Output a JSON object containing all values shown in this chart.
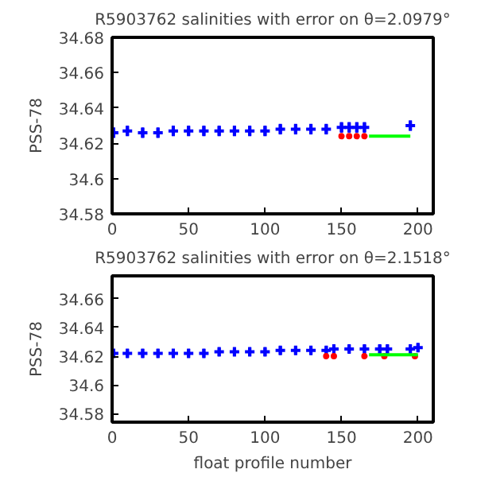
{
  "chart_data": [
    {
      "type": "scatter",
      "title": "R5903762 salinities with error on θ=2.0979°",
      "ylabel": "PSS-78",
      "xlim": [
        0,
        210
      ],
      "ylim": [
        34.58,
        34.68
      ],
      "xticks": [
        0,
        50,
        100,
        150,
        200
      ],
      "yticks": [
        34.58,
        34.6,
        34.62,
        34.64,
        34.66,
        34.68
      ],
      "grid": false,
      "series": [
        {
          "color": "#0000ff",
          "marker": "cross",
          "x": [
            1,
            10,
            20,
            30,
            40,
            50,
            60,
            70,
            80,
            90,
            100,
            110,
            120,
            130,
            140,
            150,
            155,
            160,
            165,
            195
          ],
          "values": [
            34.626,
            34.627,
            34.626,
            34.626,
            34.627,
            34.627,
            34.627,
            34.627,
            34.627,
            34.627,
            34.627,
            34.628,
            34.628,
            34.628,
            34.628,
            34.629,
            34.629,
            34.629,
            34.629,
            34.63
          ],
          "errors": [
            0.003,
            0.003,
            0.003,
            0.003,
            0.003,
            0.003,
            0.003,
            0.003,
            0.003,
            0.003,
            0.003,
            0.003,
            0.003,
            0.003,
            0.003,
            0.003,
            0.003,
            0.003,
            0.003,
            0.003
          ]
        },
        {
          "type": "scatter",
          "color": "#ff0000",
          "marker": "circle",
          "x": [
            150,
            155,
            160,
            165
          ],
          "values": [
            34.624,
            34.624,
            34.624,
            34.624
          ]
        },
        {
          "type": "line",
          "color": "#00ff00",
          "line_style": "solid",
          "x": [
            168,
            195
          ],
          "values": [
            34.624,
            34.624
          ]
        }
      ]
    },
    {
      "type": "scatter",
      "title": "R5903762 salinities with error on θ=2.1518°",
      "xlabel": "float profile number",
      "ylabel": "PSS-78",
      "xlim": [
        0,
        210
      ],
      "ylim": [
        34.574,
        34.676
      ],
      "xticks": [
        0,
        50,
        100,
        150,
        200
      ],
      "yticks": [
        34.58,
        34.6,
        34.62,
        34.64,
        34.66
      ],
      "grid": false,
      "series": [
        {
          "color": "#0000ff",
          "marker": "cross",
          "x": [
            1,
            10,
            20,
            30,
            40,
            50,
            60,
            70,
            80,
            90,
            100,
            110,
            120,
            130,
            140,
            145,
            155,
            165,
            175,
            180,
            195,
            200
          ],
          "values": [
            34.622,
            34.622,
            34.622,
            34.622,
            34.622,
            34.622,
            34.622,
            34.623,
            34.623,
            34.623,
            34.623,
            34.624,
            34.624,
            34.624,
            34.624,
            34.625,
            34.625,
            34.625,
            34.625,
            34.625,
            34.625,
            34.626
          ],
          "errors": [
            0.003,
            0.003,
            0.003,
            0.003,
            0.003,
            0.003,
            0.003,
            0.003,
            0.003,
            0.003,
            0.003,
            0.003,
            0.003,
            0.003,
            0.003,
            0.003,
            0.003,
            0.003,
            0.003,
            0.003,
            0.003,
            0.003
          ]
        },
        {
          "type": "scatter",
          "color": "#ff0000",
          "marker": "circle",
          "x": [
            140,
            145,
            165,
            178,
            198
          ],
          "values": [
            34.62,
            34.62,
            34.62,
            34.62,
            34.62
          ]
        },
        {
          "type": "line",
          "color": "#00ff00",
          "line_style": "solid",
          "x": [
            168,
            200
          ],
          "values": [
            34.621,
            34.621
          ]
        }
      ]
    }
  ]
}
